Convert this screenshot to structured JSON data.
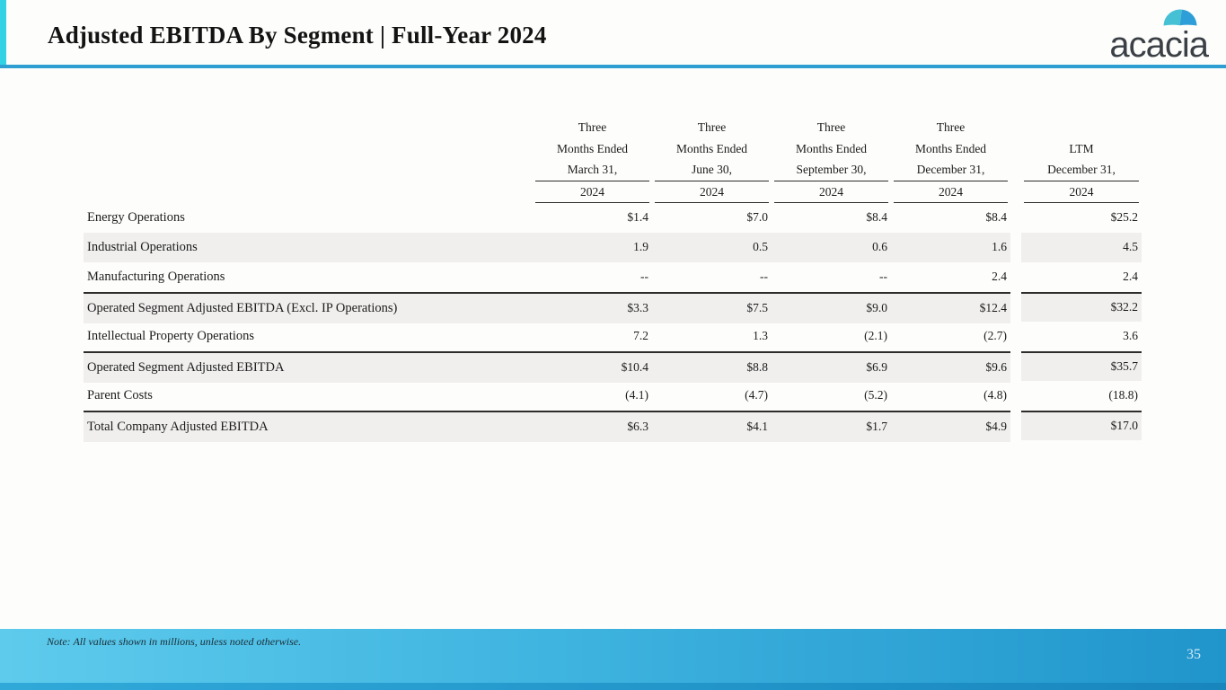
{
  "slide": {
    "title": "Adjusted EBITDA By Segment | Full-Year 2024",
    "logo_text": "acacia",
    "note": "Note: All values shown in millions, unless noted otherwise.",
    "page_number": "35"
  },
  "colors": {
    "accent_cyan": "#32d2e5",
    "header_rule_blue": "#2f9fd2",
    "row_stripe_gray": "#f0efee",
    "subtotal_border": "#2d2c2a",
    "footer_gradient_left": "#5ecbec",
    "footer_gradient_right": "#2095cb",
    "bottom_strip_blue": "#1886bd",
    "logo_dome_left": "#45c0d5",
    "logo_dome_right": "#2d9ed8",
    "logo_text_color": "#3b4046",
    "page_number_color": "#cfe9f6"
  },
  "table": {
    "columns": [
      {
        "lines": [
          "Three",
          "Months Ended",
          "March 31,"
        ],
        "year": "2024"
      },
      {
        "lines": [
          "Three",
          "Months Ended",
          "June 30,"
        ],
        "year": "2024"
      },
      {
        "lines": [
          "Three",
          "Months Ended",
          "September 30,"
        ],
        "year": "2024"
      },
      {
        "lines": [
          "Three",
          "Months Ended",
          "December 31,"
        ],
        "year": "2024"
      },
      {
        "lines": [
          "",
          "LTM",
          "December 31,"
        ],
        "year": "2024"
      }
    ],
    "rows": [
      {
        "label": "Energy Operations",
        "values": [
          "$1.4",
          "$7.0",
          "$8.4",
          "$8.4",
          "$25.2"
        ],
        "stripe": false,
        "subtotal": false
      },
      {
        "label": "Industrial Operations",
        "values": [
          "1.9",
          "0.5",
          "0.6",
          "1.6",
          "4.5"
        ],
        "stripe": true,
        "subtotal": false
      },
      {
        "label": "Manufacturing Operations",
        "values": [
          "--",
          "--",
          "--",
          "2.4",
          "2.4"
        ],
        "stripe": false,
        "subtotal": false
      },
      {
        "label": "Operated Segment Adjusted EBITDA (Excl. IP Operations)",
        "values": [
          "$3.3",
          "$7.5",
          "$9.0",
          "$12.4",
          "$32.2"
        ],
        "stripe": true,
        "subtotal": true
      },
      {
        "label": "Intellectual Property Operations",
        "values": [
          "7.2",
          "1.3",
          "(2.1)",
          "(2.7)",
          "3.6"
        ],
        "stripe": false,
        "subtotal": false
      },
      {
        "label": "Operated Segment Adjusted EBITDA",
        "values": [
          "$10.4",
          "$8.8",
          "$6.9",
          "$9.6",
          "$35.7"
        ],
        "stripe": true,
        "subtotal": true
      },
      {
        "label": "Parent Costs",
        "values": [
          "(4.1)",
          "(4.7)",
          "(5.2)",
          "(4.8)",
          "(18.8)"
        ],
        "stripe": false,
        "subtotal": false
      },
      {
        "label": "Total Company Adjusted EBITDA",
        "values": [
          "$6.3",
          "$4.1",
          "$1.7",
          "$4.9",
          "$17.0"
        ],
        "stripe": true,
        "subtotal": true
      }
    ]
  },
  "chart_data": {
    "type": "table",
    "title": "Adjusted EBITDA By Segment | Full-Year 2024",
    "columns": [
      "Three Months Ended March 31, 2024",
      "Three Months Ended June 30, 2024",
      "Three Months Ended September 30, 2024",
      "Three Months Ended December 31, 2024",
      "LTM December 31, 2024"
    ],
    "series": [
      {
        "name": "Energy Operations",
        "values": [
          1.4,
          7.0,
          8.4,
          8.4,
          25.2
        ]
      },
      {
        "name": "Industrial Operations",
        "values": [
          1.9,
          0.5,
          0.6,
          1.6,
          4.5
        ]
      },
      {
        "name": "Manufacturing Operations",
        "values": [
          null,
          null,
          null,
          2.4,
          2.4
        ]
      },
      {
        "name": "Operated Segment Adjusted EBITDA (Excl. IP Operations)",
        "values": [
          3.3,
          7.5,
          9.0,
          12.4,
          32.2
        ]
      },
      {
        "name": "Intellectual Property Operations",
        "values": [
          7.2,
          1.3,
          -2.1,
          -2.7,
          3.6
        ]
      },
      {
        "name": "Operated Segment Adjusted EBITDA",
        "values": [
          10.4,
          8.8,
          6.9,
          9.6,
          35.7
        ]
      },
      {
        "name": "Parent Costs",
        "values": [
          -4.1,
          -4.7,
          -5.2,
          -4.8,
          -18.8
        ]
      },
      {
        "name": "Total Company Adjusted EBITDA",
        "values": [
          6.3,
          4.1,
          1.7,
          4.9,
          17.0
        ]
      }
    ],
    "units": "USD millions"
  }
}
